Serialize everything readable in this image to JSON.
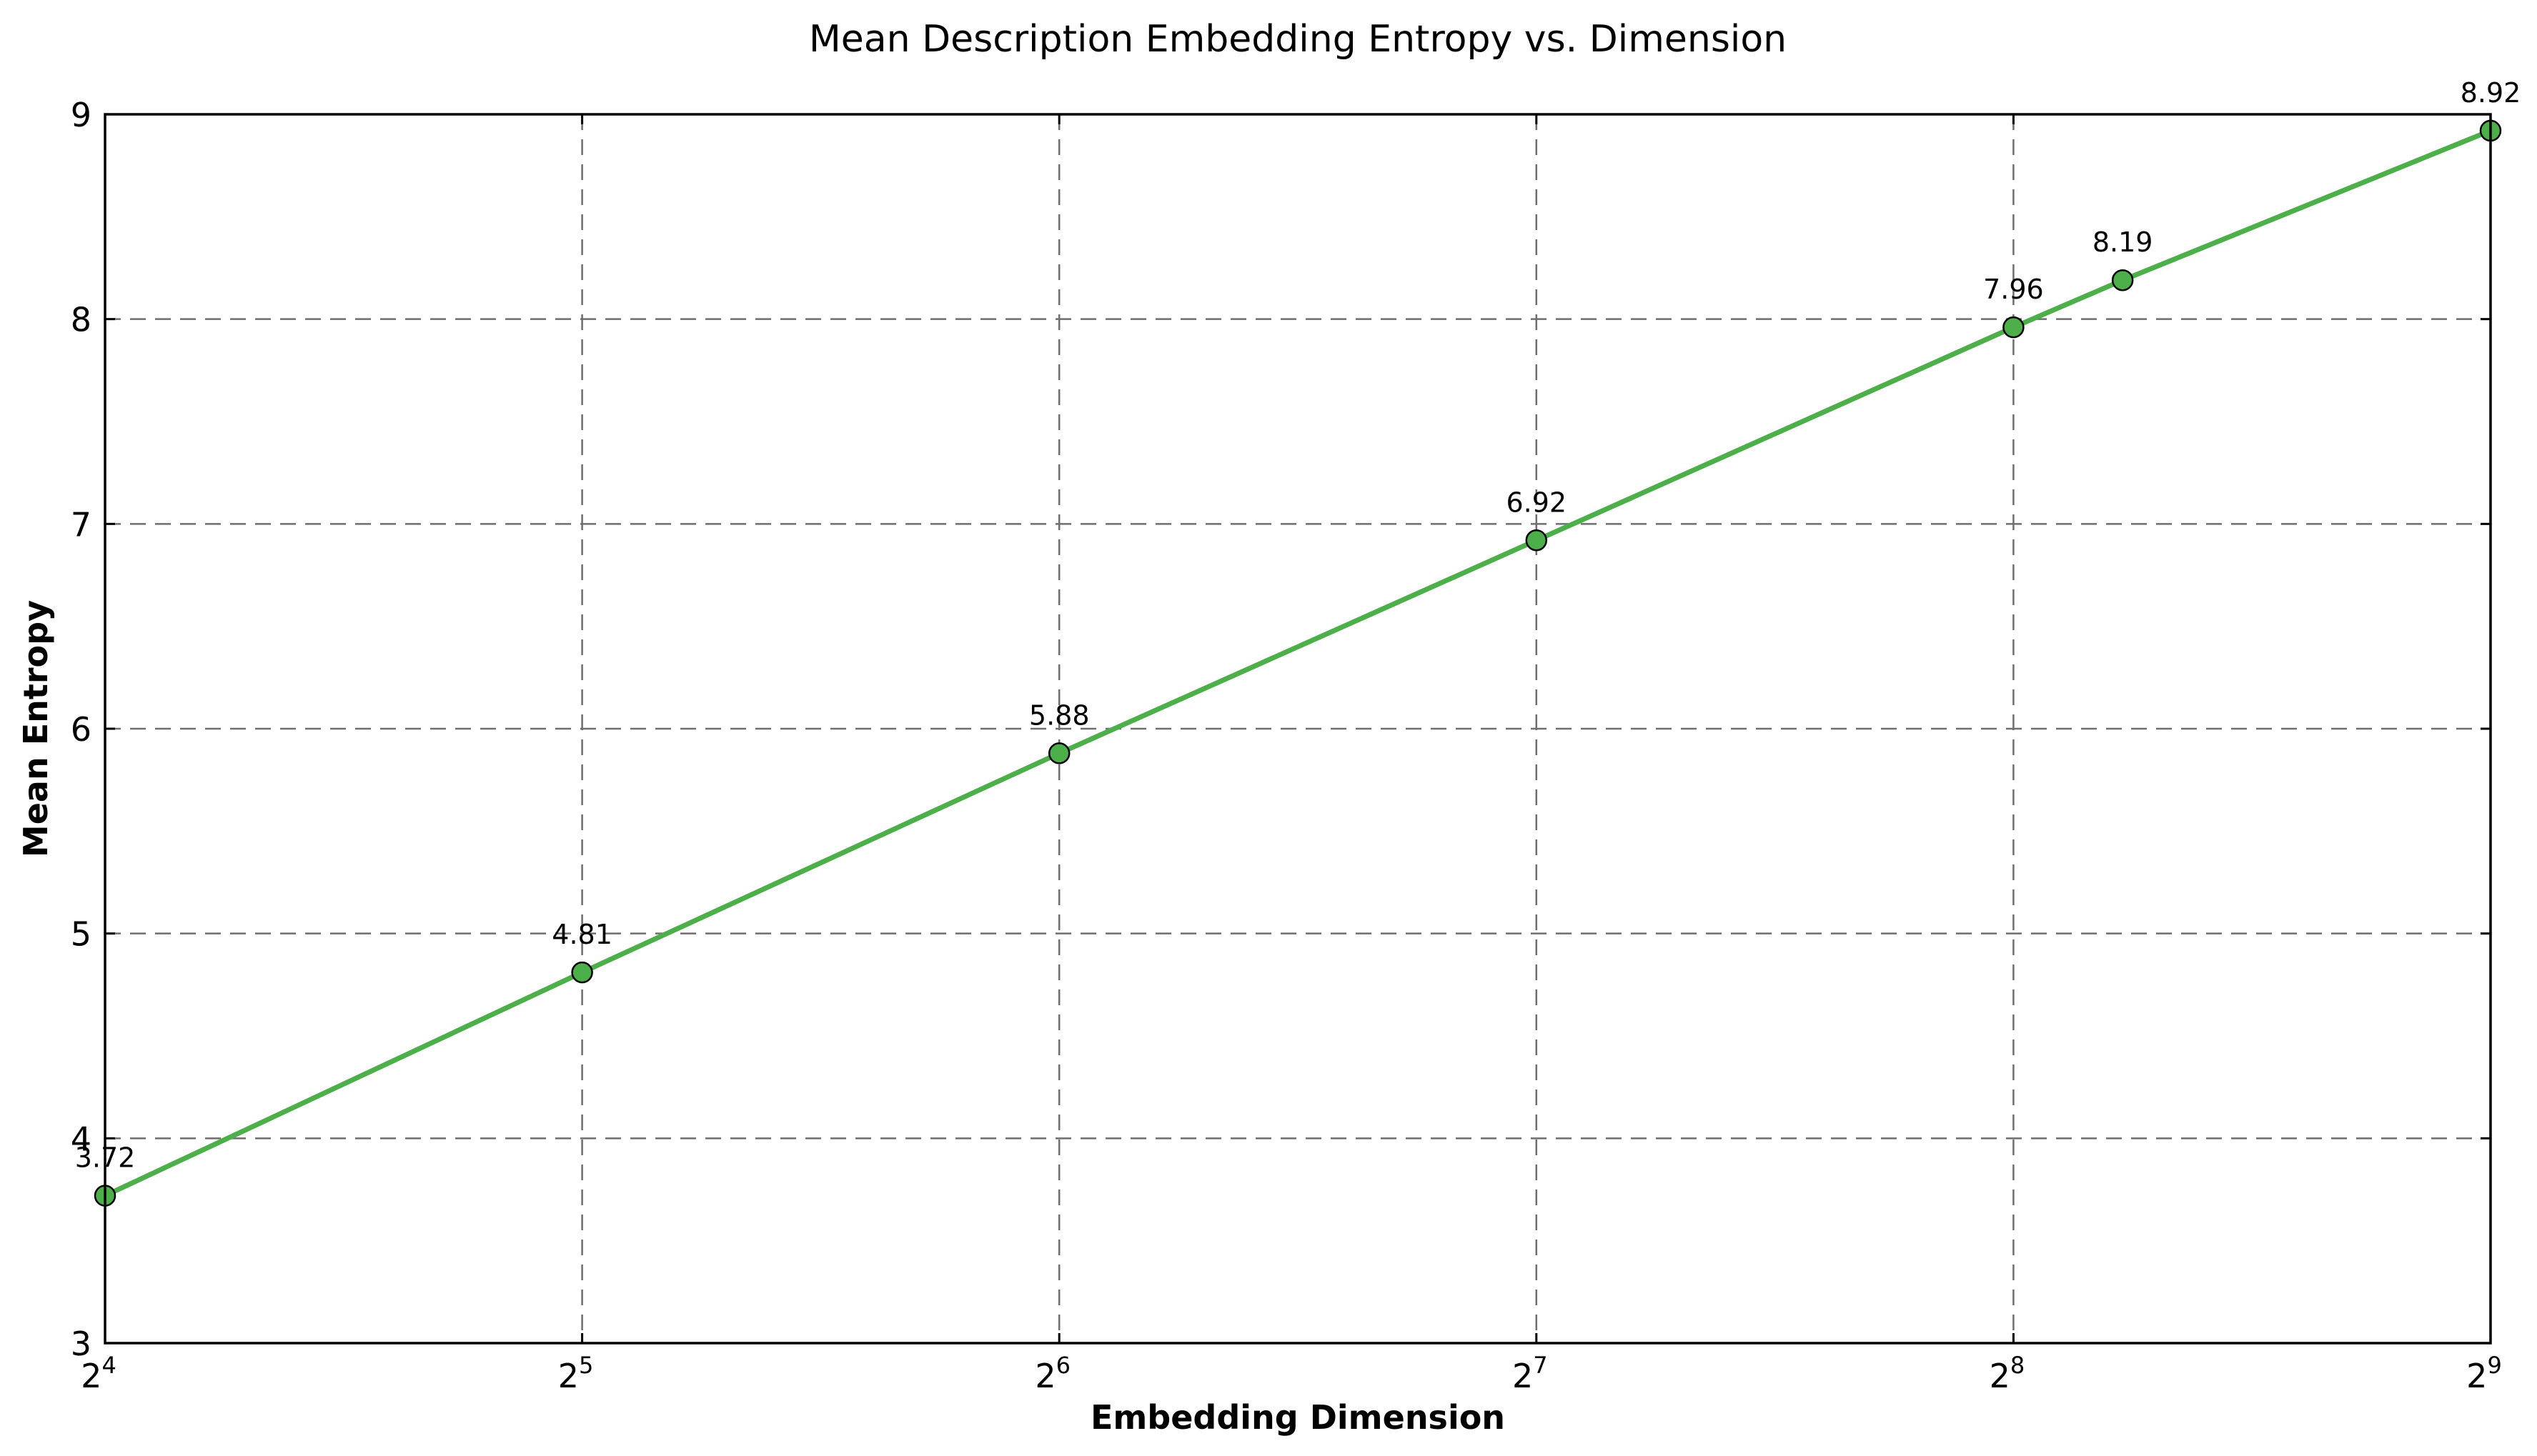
{
  "chart_data": {
    "type": "line",
    "title": "Mean Description Embedding Entropy vs. Dimension",
    "xlabel": "Embedding Dimension",
    "ylabel": "Mean Entropy",
    "x_scale": "log2",
    "xlim": [
      16,
      512
    ],
    "ylim": [
      3,
      9
    ],
    "x_ticks": [
      {
        "value": 16,
        "base": "2",
        "exp": "4"
      },
      {
        "value": 32,
        "base": "2",
        "exp": "5"
      },
      {
        "value": 64,
        "base": "2",
        "exp": "6"
      },
      {
        "value": 128,
        "base": "2",
        "exp": "7"
      },
      {
        "value": 256,
        "base": "2",
        "exp": "8"
      },
      {
        "value": 512,
        "base": "2",
        "exp": "9"
      }
    ],
    "y_ticks": [
      "3",
      "4",
      "5",
      "6",
      "7",
      "8",
      "9"
    ],
    "grid": true,
    "grid_style": "dashed",
    "series": [
      {
        "color": "#4daf4a",
        "marker": "circle",
        "x": [
          16,
          32,
          64,
          128,
          256,
          300,
          512
        ],
        "y": [
          3.72,
          4.81,
          5.88,
          6.92,
          7.96,
          8.19,
          8.92
        ],
        "labels": [
          "3.72",
          "4.81",
          "5.88",
          "6.92",
          "7.96",
          "8.19",
          "8.92"
        ]
      }
    ]
  }
}
